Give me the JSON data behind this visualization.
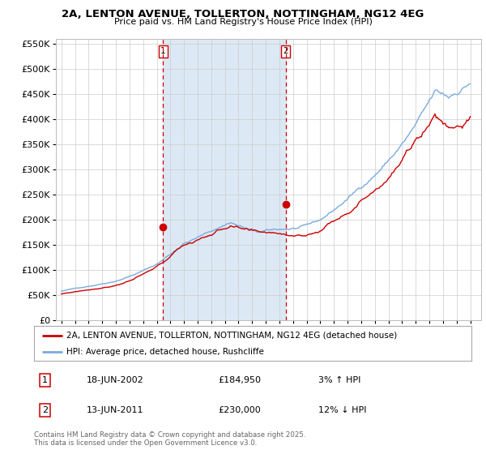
{
  "title": "2A, LENTON AVENUE, TOLLERTON, NOTTINGHAM, NG12 4EG",
  "subtitle": "Price paid vs. HM Land Registry's House Price Index (HPI)",
  "legend_line1": "2A, LENTON AVENUE, TOLLERTON, NOTTINGHAM, NG12 4EG (detached house)",
  "legend_line2": "HPI: Average price, detached house, Rushcliffe",
  "marker1_date": "18-JUN-2002",
  "marker1_price": 184950,
  "marker1_label": "3% ↑ HPI",
  "marker2_date": "13-JUN-2011",
  "marker2_price": 230000,
  "marker2_label": "12% ↓ HPI",
  "marker1_x": 2002.46,
  "marker2_x": 2011.45,
  "hpi_color": "#7aabdc",
  "price_color": "#cc0000",
  "shade_color": "#dce9f5",
  "background_color": "#ffffff",
  "grid_color": "#cccccc",
  "ylim": [
    0,
    560000
  ],
  "xlim": [
    1994.6,
    2025.8
  ],
  "footnote": "Contains HM Land Registry data © Crown copyright and database right 2025.\nThis data is licensed under the Open Government Licence v3.0."
}
